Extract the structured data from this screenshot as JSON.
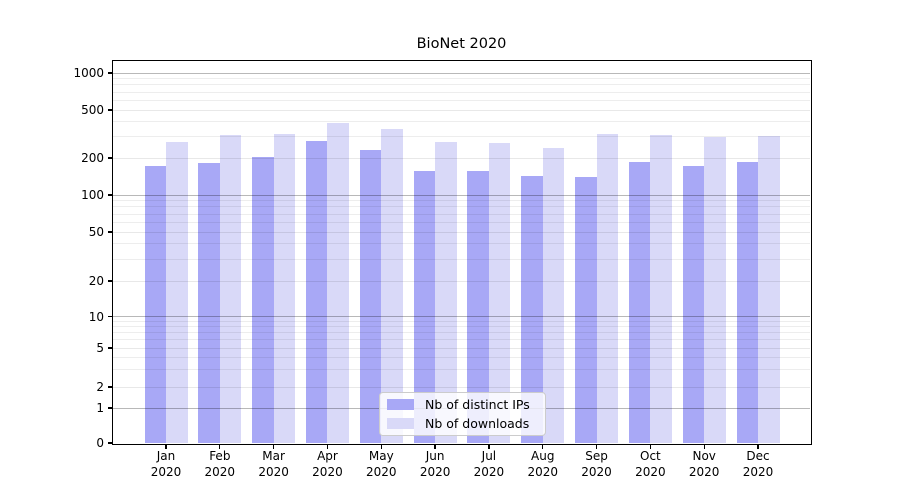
{
  "title": "BioNet 2020",
  "chart_data": {
    "type": "bar",
    "title": "BioNet 2020",
    "categories": [
      "Jan",
      "Feb",
      "Mar",
      "Apr",
      "May",
      "Jun",
      "Jul",
      "Aug",
      "Sep",
      "Oct",
      "Nov",
      "Dec"
    ],
    "year_label": "2020",
    "series": [
      {
        "name": "Nb of distinct IPs",
        "color": "#a8a8f6",
        "values": [
          172,
          181,
          202,
          276,
          231,
          158,
          158,
          144,
          141,
          187,
          171,
          185
        ]
      },
      {
        "name": "Nb of downloads",
        "color": "#d9d9f8",
        "values": [
          271,
          312,
          319,
          389,
          346,
          271,
          265,
          242,
          319,
          310,
          300,
          304
        ]
      }
    ],
    "xlabel": "",
    "ylabel": "",
    "yscale": "symlog",
    "yticks": [
      0,
      1,
      2,
      5,
      10,
      20,
      50,
      100,
      200,
      500,
      1000
    ],
    "ylim": [
      0,
      1100
    ],
    "grid": true,
    "legend_position": "lower center"
  }
}
